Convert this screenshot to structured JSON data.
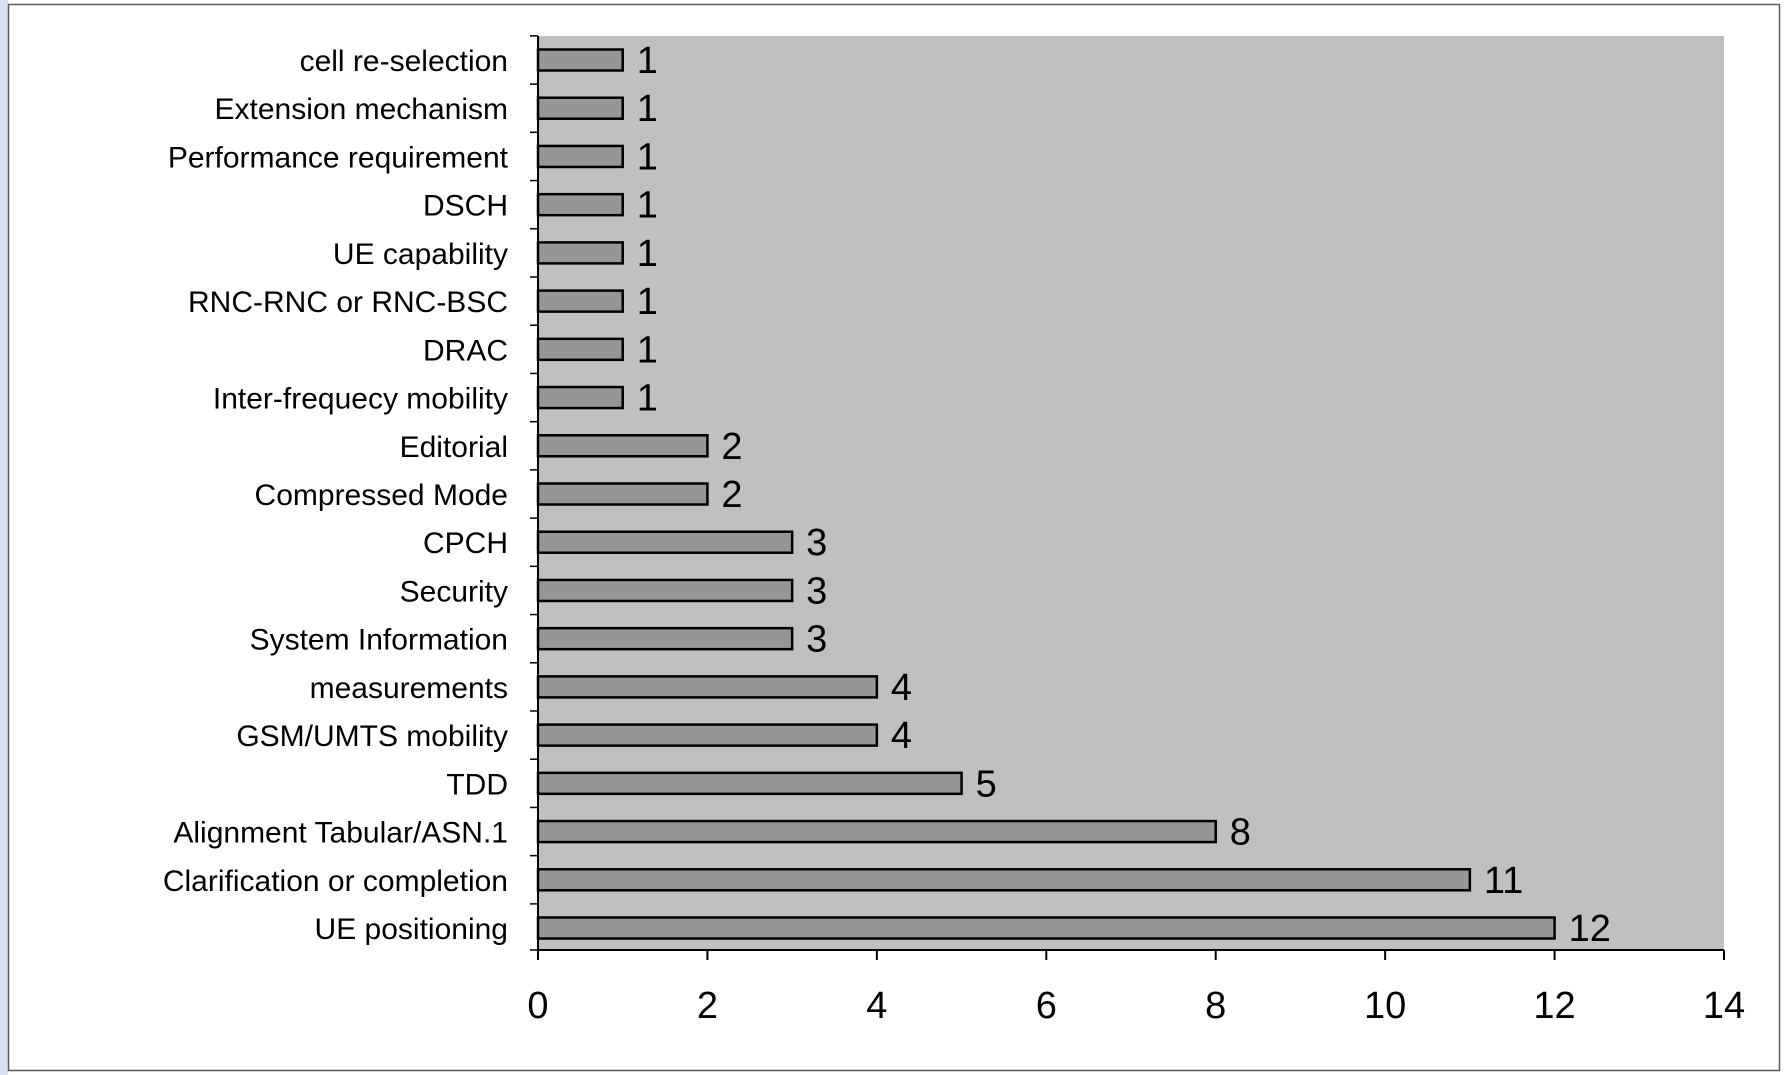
{
  "chart_data": {
    "type": "bar",
    "orientation": "horizontal",
    "categories": [
      "cell re-selection",
      "Extension mechanism",
      "Performance requirement",
      "DSCH",
      "UE capability",
      "RNC-RNC or RNC-BSC",
      "DRAC",
      "Inter-frequecy mobility",
      "Editorial",
      "Compressed Mode",
      "CPCH",
      "Security",
      "System Information",
      "measurements",
      "GSM/UMTS mobility",
      "TDD",
      "Alignment Tabular/ASN.1",
      "Clarification or completion",
      "UE positioning"
    ],
    "values": [
      1,
      1,
      1,
      1,
      1,
      1,
      1,
      1,
      2,
      2,
      3,
      3,
      3,
      4,
      4,
      5,
      8,
      11,
      12
    ],
    "xlim": [
      0,
      14
    ],
    "x_ticks": [
      "0",
      "2",
      "4",
      "6",
      "8",
      "10",
      "12",
      "14"
    ],
    "data_labels": true,
    "grid": false,
    "legend": "none",
    "colors": {
      "plot_background": "#c0c0c0",
      "bar_fill": "#969696",
      "bar_stroke": "#000000"
    }
  }
}
